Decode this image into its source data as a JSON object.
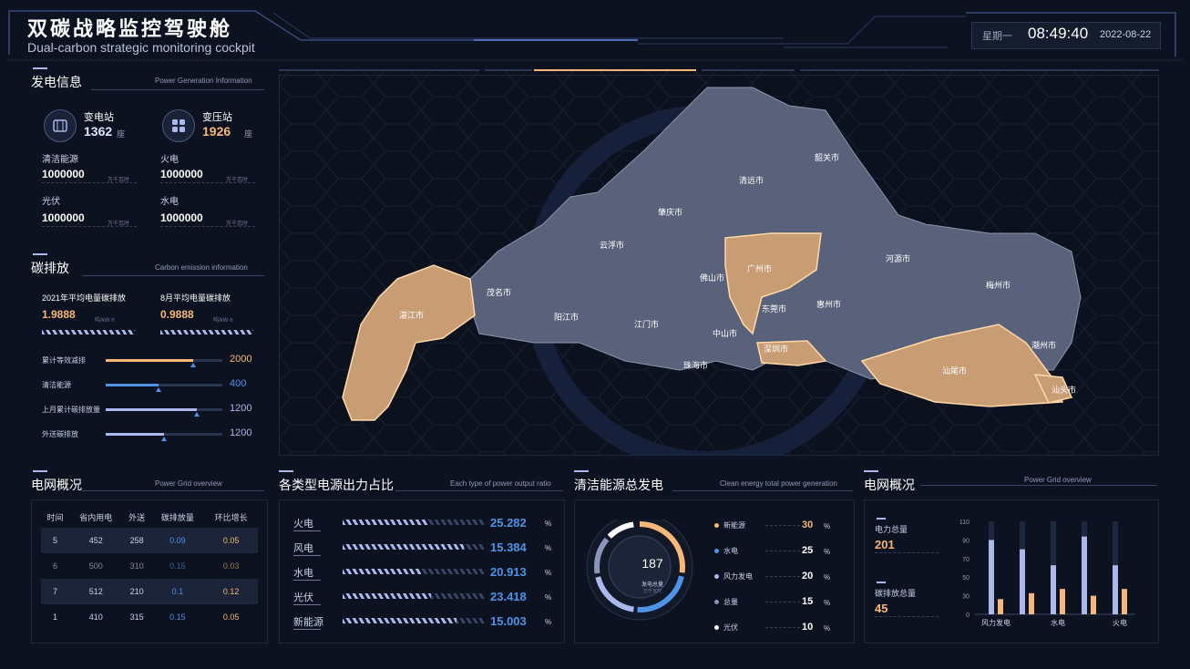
{
  "header": {
    "title_cn": "双碳战略监控驾驶舱",
    "title_en": "Dual-carbon strategic monitoring cockpit",
    "weekday": "星期一",
    "time": "08:49:40",
    "date": "2022-08-22"
  },
  "power_gen": {
    "title": "发电信息",
    "subtitle": "Power Generation Information",
    "substation": {
      "label": "变电站",
      "value": "1362",
      "unit": "座"
    },
    "transformer": {
      "label": "变压站",
      "value": "1926",
      "unit": "座"
    },
    "items": [
      {
        "label": "清洁能源",
        "value": "1000000",
        "unit": "万千瓦时"
      },
      {
        "label": "火电",
        "value": "1000000",
        "unit": "万千瓦时"
      },
      {
        "label": "光伏",
        "value": "1000000",
        "unit": "万千瓦时"
      },
      {
        "label": "水电",
        "value": "1000000",
        "unit": "万千瓦时"
      }
    ]
  },
  "carbon": {
    "title": "碳排放",
    "subtitle": "Carbon emission information",
    "avg2021": {
      "label": "2021年平均电量碳排放",
      "value": "1.9888",
      "unit": "吨/kW·h"
    },
    "avgAug": {
      "label": "8月平均电量碳排放",
      "value": "0.9888",
      "unit": "吨/kW·h"
    },
    "bars": [
      {
        "label": "累计等效减排",
        "value": "2000",
        "fill": 0.75,
        "color": "#f7b877"
      },
      {
        "label": "清洁能源",
        "value": "400",
        "fill": 0.45,
        "color": "#4f93e6"
      },
      {
        "label": "上月累计碳排放量",
        "value": "1200",
        "fill": 0.78,
        "color": "#aab8ec"
      },
      {
        "label": "外送碳排放",
        "value": "1200",
        "fill": 0.5,
        "color": "#aab8ec"
      }
    ]
  },
  "map": {
    "cities": [
      {
        "name": "韶关市",
        "hl": false
      },
      {
        "name": "清远市",
        "hl": false
      },
      {
        "name": "肇庆市",
        "hl": false
      },
      {
        "name": "云浮市",
        "hl": false
      },
      {
        "name": "茂名市",
        "hl": false
      },
      {
        "name": "湛江市",
        "hl": true
      },
      {
        "name": "阳江市",
        "hl": false
      },
      {
        "name": "江门市",
        "hl": false
      },
      {
        "name": "佛山市",
        "hl": false
      },
      {
        "name": "广州市",
        "hl": true
      },
      {
        "name": "东莞市",
        "hl": false
      },
      {
        "name": "中山市",
        "hl": false
      },
      {
        "name": "珠海市",
        "hl": false
      },
      {
        "name": "深圳市",
        "hl": true
      },
      {
        "name": "惠州市",
        "hl": false
      },
      {
        "name": "河源市",
        "hl": false
      },
      {
        "name": "梅州市",
        "hl": false
      },
      {
        "name": "汕尾市",
        "hl": true
      },
      {
        "name": "潮州市",
        "hl": false
      },
      {
        "name": "汕头市",
        "hl": true
      }
    ]
  },
  "grid": {
    "title": "电网概况",
    "subtitle": "Power Grid overview",
    "columns": [
      "时间",
      "省内用电",
      "外送",
      "碳排放量",
      "环比增长"
    ],
    "rows": [
      [
        "5",
        "452",
        "258",
        "0.09",
        "0.05"
      ],
      [
        "6",
        "500",
        "310",
        "0.15",
        "0.03"
      ],
      [
        "7",
        "512",
        "210",
        "0.1",
        "0.12"
      ],
      [
        "1",
        "410",
        "315",
        "0.15",
        "0.05"
      ]
    ]
  },
  "ratio": {
    "title": "各类型电源出力占比",
    "subtitle": "Each type of power output ratio",
    "items": [
      {
        "label": "火电",
        "value": "25.282",
        "unit": "%",
        "fill": 0.6
      },
      {
        "label": "风电",
        "value": "15.384",
        "unit": "%",
        "fill": 0.85
      },
      {
        "label": "水电",
        "value": "20.913",
        "unit": "%",
        "fill": 0.55
      },
      {
        "label": "光伏",
        "value": "23.418",
        "unit": "%",
        "fill": 0.62
      },
      {
        "label": "新能源",
        "value": "15.003",
        "unit": "%",
        "fill": 0.8
      }
    ]
  },
  "clean": {
    "title": "清洁能源总发电",
    "subtitle": "Clean energy total power generation",
    "center_value": "187",
    "center_label": "发电总量",
    "center_unit": "万千瓦时",
    "items": [
      {
        "label": "新能源",
        "value": "30",
        "unit": "%",
        "color": "#f7b877"
      },
      {
        "label": "水电",
        "value": "25",
        "unit": "%",
        "color": "#4f93e6"
      },
      {
        "label": "风力发电",
        "value": "20",
        "unit": "%",
        "color": "#aab8ec"
      },
      {
        "label": "总量",
        "value": "15",
        "unit": "%",
        "color": "#8a96b8"
      },
      {
        "label": "光伏",
        "value": "10",
        "unit": "%",
        "color": "#ffffff"
      }
    ]
  },
  "grid2": {
    "title": "电网概况",
    "subtitle": "Power Grid overview",
    "stats": [
      {
        "label": "电力总量",
        "value": "201"
      },
      {
        "label": "碳排放总量",
        "value": "45"
      }
    ]
  },
  "chart_data": {
    "type": "bar",
    "categories": [
      "风力发电",
      "",
      "水电",
      "",
      "火电"
    ],
    "ylim": [
      0,
      110
    ],
    "yticks": [
      "110",
      "90",
      "70",
      "50",
      "30",
      "0"
    ],
    "series": [
      {
        "values": [
          88,
          77,
          58,
          92,
          58
        ],
        "color": "#aab8ec"
      },
      {
        "values": [
          18,
          25,
          30,
          22,
          30
        ],
        "color": "#f7b877"
      }
    ],
    "grid": false
  }
}
